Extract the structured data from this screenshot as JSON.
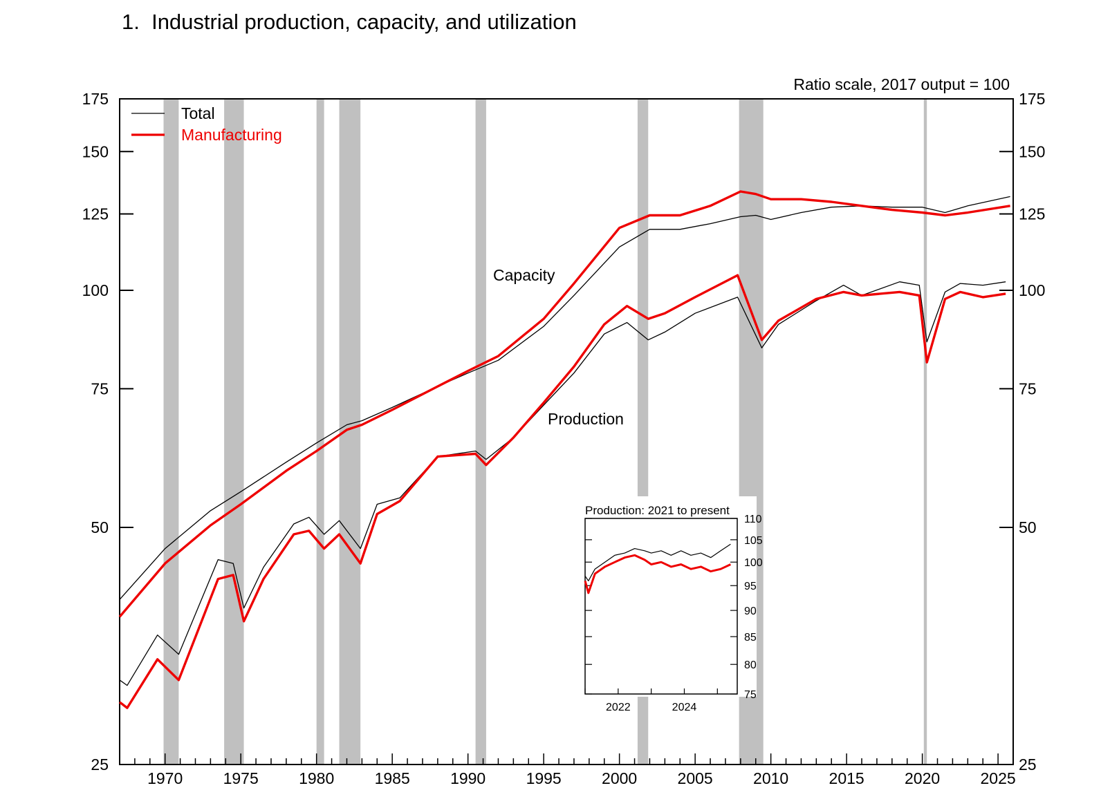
{
  "title": "1.  Industrial production, capacity, and utilization",
  "colors": {
    "total": "#000000",
    "manufacturing": "#ee0000",
    "recession": "#c0c0c0"
  },
  "chart_data": {
    "type": "line",
    "title": "1.  Industrial production, capacity, and utilization",
    "scale_note": "Ratio scale, 2017 output = 100",
    "y_scale": "log",
    "ylim": [
      25,
      175
    ],
    "xlim": [
      1967,
      2026
    ],
    "y_ticks": [
      25,
      50,
      75,
      100,
      125,
      150,
      175
    ],
    "x_ticks": [
      1970,
      1975,
      1980,
      1985,
      1990,
      1995,
      2000,
      2005,
      2010,
      2015,
      2020,
      2025
    ],
    "grid": false,
    "legend": {
      "placement": "top-left",
      "entries": [
        "Total",
        "Manufacturing"
      ]
    },
    "annotations": [
      "Capacity",
      "Production"
    ],
    "recessions": [
      [
        1969.9,
        1970.9
      ],
      [
        1973.9,
        1975.2
      ],
      [
        1980.0,
        1980.5
      ],
      [
        1981.5,
        1982.9
      ],
      [
        1990.5,
        1991.2
      ],
      [
        2001.2,
        2001.9
      ],
      [
        2007.9,
        2009.5
      ],
      [
        2020.1,
        2020.3
      ]
    ],
    "series": [
      {
        "name": "Total",
        "group": "Capacity",
        "x": [
          1967,
          1970,
          1973,
          1975,
          1978,
          1980,
          1982,
          1983,
          1985,
          1988,
          1990,
          1992,
          1995,
          1997,
          2000,
          2002,
          2004,
          2006,
          2008,
          2009,
          2010,
          2012,
          2014,
          2016,
          2018,
          2020,
          2021.5,
          2023,
          2025.8
        ],
        "y": [
          40.5,
          47.0,
          52.5,
          55.5,
          60.5,
          64.0,
          67.5,
          68.3,
          71.0,
          75.5,
          78.5,
          81.5,
          90.0,
          98.5,
          113.5,
          119.5,
          119.5,
          121.5,
          124.0,
          124.5,
          123.0,
          125.5,
          127.5,
          128.0,
          127.5,
          127.5,
          125.5,
          128.0,
          131.5
        ]
      },
      {
        "name": "Manufacturing",
        "group": "Capacity",
        "x": [
          1967,
          1970,
          1973,
          1975,
          1978,
          1980,
          1982,
          1983,
          1985,
          1988,
          1990,
          1992,
          1995,
          1997,
          2000,
          2002,
          2004,
          2006,
          2008,
          2009,
          2010,
          2012,
          2014,
          2016,
          2018,
          2020,
          2021.5,
          2023,
          2025.8
        ],
        "y": [
          38.5,
          45.0,
          50.3,
          53.5,
          59.0,
          62.5,
          66.5,
          67.5,
          70.5,
          75.5,
          79.0,
          82.5,
          92.0,
          102.0,
          120.0,
          124.5,
          124.5,
          128.0,
          133.5,
          132.5,
          130.5,
          130.5,
          129.5,
          128.0,
          126.5,
          125.5,
          124.5,
          125.5,
          128.0
        ]
      },
      {
        "name": "Total",
        "group": "Production",
        "x": [
          1967,
          1967.5,
          1969.5,
          1970.9,
          1973.5,
          1974.5,
          1975.2,
          1976.5,
          1978.5,
          1979.5,
          1980.5,
          1981.5,
          1982.9,
          1984,
          1985.5,
          1988,
          1990.5,
          1991.2,
          1993,
          1995,
          1997,
          1999,
          2000.5,
          2001.9,
          2003,
          2005,
          2007.8,
          2009.4,
          2010.5,
          2013,
          2014.8,
          2016,
          2018.5,
          2019.8,
          2020.3,
          2021.5,
          2022.5,
          2024,
          2025.5
        ],
        "y": [
          32.0,
          31.5,
          36.5,
          34.5,
          45.5,
          45.0,
          39.5,
          44.5,
          50.5,
          51.5,
          49.0,
          51.0,
          47.0,
          53.5,
          54.5,
          61.5,
          62.5,
          61.0,
          65.0,
          71.5,
          78.5,
          88.0,
          91.0,
          86.5,
          88.5,
          93.5,
          98.0,
          84.5,
          90.5,
          97.0,
          101.5,
          98.5,
          102.5,
          101.5,
          86.0,
          99.5,
          102.0,
          101.5,
          102.5
        ]
      },
      {
        "name": "Manufacturing",
        "group": "Production",
        "x": [
          1967,
          1967.5,
          1969.5,
          1970.9,
          1973.5,
          1974.5,
          1975.2,
          1976.5,
          1978.5,
          1979.5,
          1980.5,
          1981.5,
          1982.9,
          1984,
          1985.5,
          1988,
          1990.5,
          1991.2,
          1993,
          1995,
          1997,
          1999,
          2000.5,
          2001.9,
          2003,
          2005,
          2007.8,
          2009.4,
          2010.5,
          2013,
          2014.8,
          2016,
          2018.5,
          2019.8,
          2020.3,
          2021.5,
          2022.5,
          2024,
          2025.5
        ],
        "y": [
          30.0,
          29.5,
          34.0,
          32.0,
          43.0,
          43.5,
          38.0,
          43.0,
          49.0,
          49.5,
          47.0,
          49.0,
          45.0,
          52.0,
          54.0,
          61.5,
          62.0,
          60.0,
          65.0,
          72.0,
          80.0,
          90.5,
          95.5,
          92.0,
          93.5,
          98.0,
          104.5,
          86.5,
          91.5,
          97.5,
          99.5,
          98.5,
          99.5,
          98.5,
          81.0,
          97.5,
          99.5,
          98.0,
          99.0
        ]
      }
    ],
    "inset": {
      "title": "Production: 2021 to present",
      "type": "line",
      "xlim": [
        2021,
        2025.6
      ],
      "ylim": [
        75,
        110
      ],
      "y_ticks": [
        75,
        80,
        85,
        90,
        95,
        100,
        105,
        110
      ],
      "x_ticks": [
        2022,
        2024
      ],
      "series": [
        {
          "name": "Total",
          "x": [
            2021.0,
            2021.1,
            2021.3,
            2021.6,
            2021.9,
            2022.2,
            2022.5,
            2022.8,
            2023.0,
            2023.3,
            2023.6,
            2023.9,
            2024.2,
            2024.5,
            2024.8,
            2025.1,
            2025.4
          ],
          "y": [
            97.0,
            96.0,
            98.5,
            100.0,
            101.5,
            102.0,
            103.0,
            102.5,
            102.0,
            102.5,
            101.5,
            102.5,
            101.5,
            102.0,
            101.0,
            102.5,
            104.0
          ]
        },
        {
          "name": "Manufacturing",
          "x": [
            2021.0,
            2021.1,
            2021.3,
            2021.6,
            2021.9,
            2022.2,
            2022.5,
            2022.8,
            2023.0,
            2023.3,
            2023.6,
            2023.9,
            2024.2,
            2024.5,
            2024.8,
            2025.1,
            2025.4
          ],
          "y": [
            96.0,
            93.5,
            97.5,
            99.0,
            100.0,
            101.0,
            101.5,
            100.5,
            99.5,
            100.0,
            99.0,
            99.5,
            98.5,
            99.0,
            98.0,
            98.5,
            99.5
          ]
        }
      ]
    }
  }
}
